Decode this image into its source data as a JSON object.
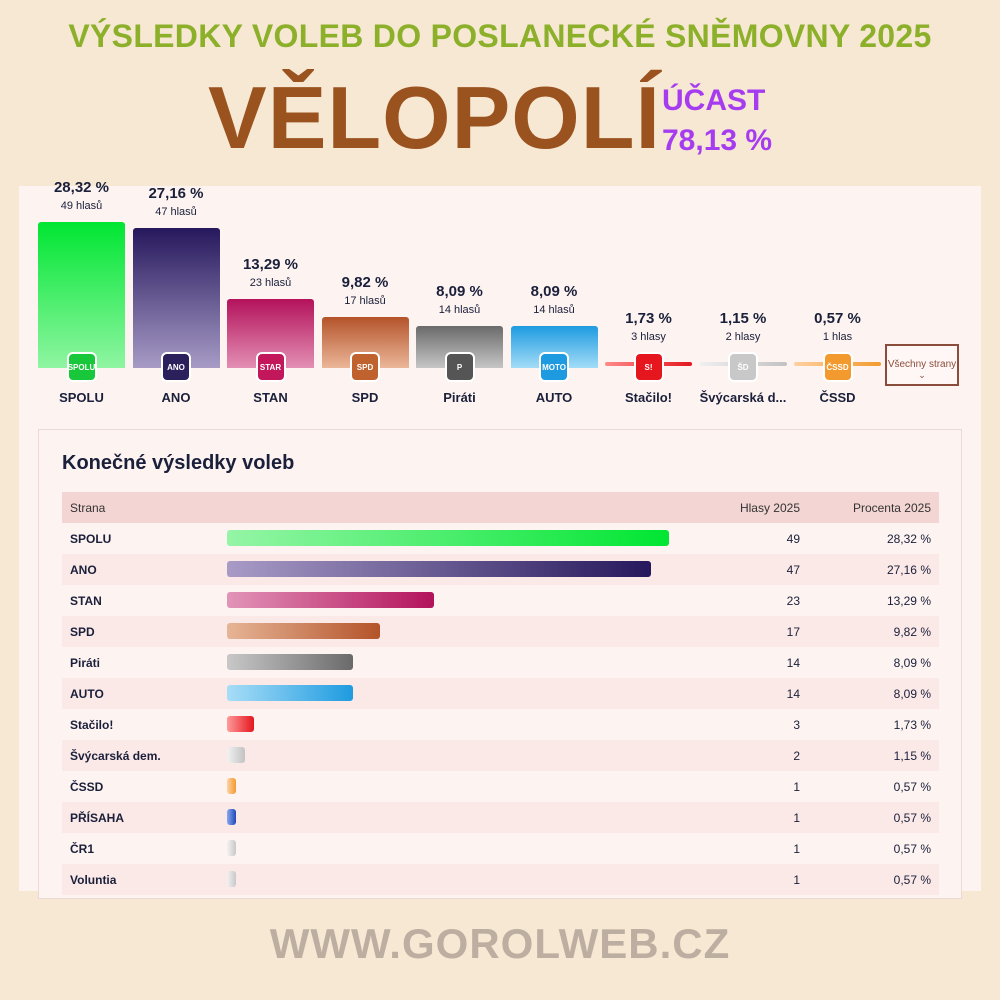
{
  "header": {
    "title": "VÝSLEDKY VOLEB DO POSLANECKÉ SNĚMOVNY 2025",
    "town": "VĚLOPOLÍ",
    "turnout_label": "ÚČAST",
    "turnout_value": "78,13 %"
  },
  "chart_data": {
    "type": "bar",
    "categories": [
      "SPOLU",
      "ANO",
      "STAN",
      "SPD",
      "Piráti",
      "AUTO",
      "Stačilo!",
      "Švýcarská d...",
      "ČSSD"
    ],
    "values": [
      28.32,
      27.16,
      13.29,
      9.82,
      8.09,
      8.09,
      1.73,
      1.15,
      0.57
    ],
    "value_labels": [
      "28,32 %",
      "27,16 %",
      "13,29 %",
      "9,82 %",
      "8,09 %",
      "8,09 %",
      "1,73 %",
      "1,15 %",
      "0,57 %"
    ],
    "vote_labels": [
      "49 hlasů",
      "47 hlasů",
      "23 hlasů",
      "17 hlasů",
      "14 hlasů",
      "14 hlasů",
      "3 hlasy",
      "2 hlasy",
      "1 hlas"
    ],
    "logos": [
      {
        "icon": "spolu-logo-icon",
        "text": "SPOLU",
        "color": "#19c83a"
      },
      {
        "icon": "ano-logo-icon",
        "text": "ANO",
        "color": "#2b1f5c"
      },
      {
        "icon": "stan-logo-icon",
        "text": "STAROSTOVÉ",
        "color": "#c2185b"
      },
      {
        "icon": "spd-logo-icon",
        "text": "SPD",
        "color": "#c0622e"
      },
      {
        "icon": "pirati-logo-icon",
        "text": "P",
        "color": "#555555"
      },
      {
        "icon": "auto-logo-icon",
        "text": "MOTORISTÉ",
        "color": "#1e9be0"
      },
      {
        "icon": "stacilo-logo-icon",
        "text": "S!",
        "color": "#e5161e"
      },
      {
        "icon": "svycarska-logo-icon",
        "text": "ŠD",
        "color": "#c8c8c8"
      },
      {
        "icon": "cssd-logo-icon",
        "text": "ČSSD",
        "color": "#f39a2e"
      }
    ],
    "colors": [
      [
        "#8ff5a2",
        "#00e632"
      ],
      [
        "#a79bc6",
        "#26185c"
      ],
      [
        "#e38fb4",
        "#b3125b"
      ],
      [
        "#ebb799",
        "#b4532a"
      ],
      [
        "#c6c6c6",
        "#6a6a6a"
      ],
      [
        "#a3dcf7",
        "#1e9be0"
      ],
      [
        "#ff8a8a",
        "#e5161e"
      ],
      [
        "#efefef",
        "#c2c2c2"
      ],
      [
        "#ffd0a0",
        "#f39a2e"
      ]
    ],
    "ylim": [
      0,
      30
    ]
  },
  "all_parties_button": "Všechny strany",
  "results": {
    "title": "Konečné výsledky voleb",
    "columns": [
      "Strana",
      "Hlasy 2025",
      "Procenta 2025"
    ],
    "rows": [
      {
        "name": "SPOLU",
        "votes": "49",
        "percent": "28,32 %",
        "value": 28.32,
        "c1": "#95f5a6",
        "c2": "#00e632"
      },
      {
        "name": "ANO",
        "votes": "47",
        "percent": "27,16 %",
        "value": 27.16,
        "c1": "#a89bc6",
        "c2": "#26185c"
      },
      {
        "name": "STAN",
        "votes": "23",
        "percent": "13,29 %",
        "value": 13.29,
        "c1": "#e294b8",
        "c2": "#b3125b"
      },
      {
        "name": "SPD",
        "votes": "17",
        "percent": "9,82 %",
        "value": 9.82,
        "c1": "#e6b596",
        "c2": "#b4532a"
      },
      {
        "name": "Piráti",
        "votes": "14",
        "percent": "8,09 %",
        "value": 8.09,
        "c1": "#c8c8c8",
        "c2": "#6a6a6a"
      },
      {
        "name": "AUTO",
        "votes": "14",
        "percent": "8,09 %",
        "value": 8.09,
        "c1": "#a8ddf7",
        "c2": "#1e9be0"
      },
      {
        "name": "Stačilo!",
        "votes": "3",
        "percent": "1,73 %",
        "value": 1.73,
        "c1": "#ff9a9a",
        "c2": "#e5161e"
      },
      {
        "name": "Švýcarská dem.",
        "votes": "2",
        "percent": "1,15 %",
        "value": 1.15,
        "c1": "#f2f2f2",
        "c2": "#c2c2c2"
      },
      {
        "name": "ČSSD",
        "votes": "1",
        "percent": "0,57 %",
        "value": 0.57,
        "c1": "#ffd2a6",
        "c2": "#f39a2e"
      },
      {
        "name": "PŘÍSAHA",
        "votes": "1",
        "percent": "0,57 %",
        "value": 0.57,
        "c1": "#8aa8f0",
        "c2": "#1f48b8"
      },
      {
        "name": "ČR1",
        "votes": "1",
        "percent": "0,57 %",
        "value": 0.57,
        "c1": "#f2f2f2",
        "c2": "#c8c8c8"
      },
      {
        "name": "Voluntia",
        "votes": "1",
        "percent": "0,57 %",
        "value": 0.57,
        "c1": "#f2f2f2",
        "c2": "#c8c8c8"
      }
    ]
  },
  "footer": "WWW.GOROLWEB.CZ"
}
